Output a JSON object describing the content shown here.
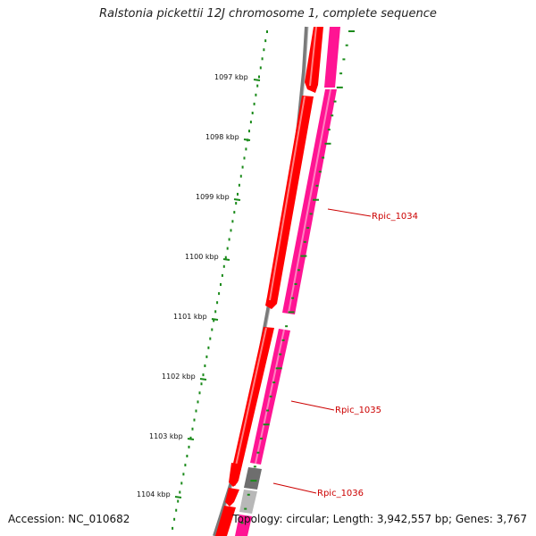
{
  "title": "Ralstonia pickettii 12J chromosome 1, complete sequence",
  "footer": {
    "accession": "Accession: NC_010682",
    "summary": "Topology: circular; Length: 3,942,557 bp; Genes: 3,767"
  },
  "ticks": [
    {
      "label": "1097 kbp"
    },
    {
      "label": "1098 kbp"
    },
    {
      "label": "1099 kbp"
    },
    {
      "label": "1100 kbp"
    },
    {
      "label": "1101 kbp"
    },
    {
      "label": "1102 kbp"
    },
    {
      "label": "1103 kbp"
    },
    {
      "label": "1104 kbp"
    }
  ],
  "genes": [
    {
      "label": "Rpic_1034"
    },
    {
      "label": "Rpic_1035"
    },
    {
      "label": "Rpic_1036"
    }
  ],
  "colors": {
    "backbone": "#808080",
    "cds_forward": "#ff0000",
    "gene_track": "#ff1493",
    "other_feature": "#808080",
    "ruler": "#1a8a1a",
    "gene_label": "#cc0000"
  }
}
